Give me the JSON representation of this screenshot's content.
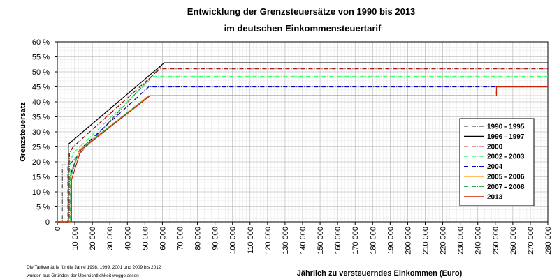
{
  "chart_data": {
    "type": "line",
    "title": "Entwicklung der Grenzsteuersätze von 1990 bis 2013",
    "subtitle": "im deutschen Einkommensteuertarif",
    "xlabel": "Jährlich zu versteuerndes Einkommen (Euro)",
    "ylabel": "Grenzsteuersatz",
    "xlim": [
      0,
      280000
    ],
    "ylim": [
      0,
      60
    ],
    "grid": true,
    "legend_position": "right",
    "x_ticks": [
      0,
      10000,
      20000,
      30000,
      40000,
      50000,
      60000,
      70000,
      80000,
      90000,
      100000,
      110000,
      120000,
      130000,
      140000,
      150000,
      160000,
      170000,
      180000,
      190000,
      200000,
      210000,
      220000,
      230000,
      240000,
      250000,
      260000,
      270000,
      280000
    ],
    "x_tick_labels": [
      "0",
      "10 000",
      "20 000",
      "30 000",
      "40 000",
      "50 000",
      "60 000",
      "70 000",
      "80 000",
      "90 000",
      "100 000",
      "110 000",
      "120 000",
      "130 000",
      "140 000",
      "150 000",
      "160 000",
      "170 000",
      "180 000",
      "190 000",
      "200 000",
      "210 000",
      "220 000",
      "230 000",
      "240 000",
      "250 000",
      "260 000",
      "270 000",
      "280 000"
    ],
    "y_ticks": [
      0,
      5,
      10,
      15,
      20,
      25,
      30,
      35,
      40,
      45,
      50,
      55,
      60
    ],
    "y_tick_labels": [
      "0",
      "5 %",
      "10 %",
      "15 %",
      "20 %",
      "25 %",
      "30 %",
      "35 %",
      "40 %",
      "45 %",
      "50 %",
      "55 %",
      "60 %"
    ],
    "series": [
      {
        "name": "1990 - 1995",
        "color": "#555555",
        "dash": "6,2,1,2",
        "points": [
          [
            0,
            0
          ],
          [
            2900,
            0
          ],
          [
            2900,
            19
          ],
          [
            6000,
            19
          ],
          [
            6000,
            0
          ],
          [
            6300,
            0
          ],
          [
            6300,
            19
          ],
          [
            6800,
            19
          ],
          [
            61000,
            53
          ],
          [
            280000,
            53
          ]
        ]
      },
      {
        "name": "1996 - 1997",
        "color": "#000000",
        "dash": "",
        "points": [
          [
            0,
            0
          ],
          [
            6300,
            0
          ],
          [
            6300,
            25.9
          ],
          [
            61000,
            53
          ],
          [
            280000,
            53
          ]
        ]
      },
      {
        "name": "2000",
        "color": "#990000",
        "dash": "6,2,1,2",
        "points": [
          [
            0,
            0
          ],
          [
            6900,
            0
          ],
          [
            6900,
            22.9
          ],
          [
            9000,
            25
          ],
          [
            58600,
            51
          ],
          [
            280000,
            51
          ]
        ]
      },
      {
        "name": "2002 - 2003",
        "color": "#33ff66",
        "dash": "6,2,1,2",
        "points": [
          [
            0,
            0
          ],
          [
            7200,
            0
          ],
          [
            7200,
            19.9
          ],
          [
            9300,
            23
          ],
          [
            55000,
            48.5
          ],
          [
            280000,
            48.5
          ]
        ]
      },
      {
        "name": "2004",
        "color": "#0000cc",
        "dash": "6,2,1,2",
        "points": [
          [
            0,
            0
          ],
          [
            7600,
            0
          ],
          [
            7600,
            16
          ],
          [
            12700,
            24
          ],
          [
            52200,
            45
          ],
          [
            280000,
            45
          ]
        ]
      },
      {
        "name": "2005 - 2006",
        "color": "#ff9900",
        "dash": "",
        "points": [
          [
            0,
            0
          ],
          [
            7700,
            0
          ],
          [
            7700,
            15
          ],
          [
            12700,
            24
          ],
          [
            52200,
            42
          ],
          [
            250000,
            42
          ],
          [
            280000,
            42
          ]
        ]
      },
      {
        "name": "2007 - 2008",
        "color": "#33aa55",
        "dash": "6,2,1,2",
        "points": [
          [
            0,
            0
          ],
          [
            7700,
            0
          ],
          [
            7700,
            15
          ],
          [
            12700,
            24
          ],
          [
            52200,
            42
          ],
          [
            250000,
            42
          ],
          [
            250000,
            45
          ],
          [
            280000,
            45
          ]
        ]
      },
      {
        "name": "2013",
        "color": "#cc2200",
        "dash": "",
        "points": [
          [
            0,
            0
          ],
          [
            8100,
            0
          ],
          [
            8100,
            14
          ],
          [
            13500,
            24
          ],
          [
            52900,
            42
          ],
          [
            250700,
            42
          ],
          [
            250700,
            45
          ],
          [
            280000,
            45
          ]
        ]
      }
    ],
    "footnote_lines": [
      "Die Tarifverläufe für die Jahre 1998, 1999, 2001 und 2009 bis 2012",
      "wurden aus Gründen der Übersichtlichkeit weggelassen"
    ]
  }
}
